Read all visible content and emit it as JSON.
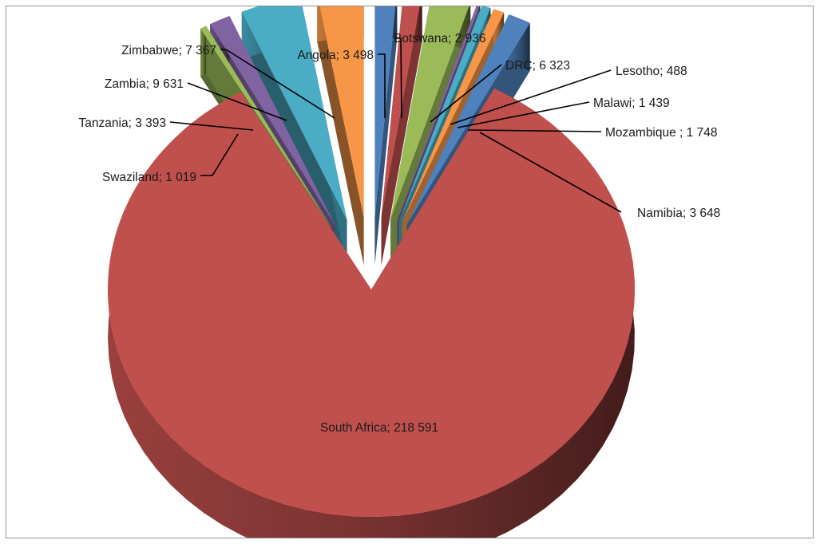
{
  "chart_data": {
    "type": "pie",
    "style": "3d-exploded",
    "title": "",
    "slices": [
      {
        "label": "Angola",
        "value": 3498,
        "text": "Angola; 3 498",
        "color": "#4f81bd"
      },
      {
        "label": "Botswana",
        "value": 2936,
        "text": "Botswana; 2 936",
        "color": "#c0504d"
      },
      {
        "label": "DRC",
        "value": 6323,
        "text": "DRC; 6 323",
        "color": "#9bbb59"
      },
      {
        "label": "Lesotho",
        "value": 488,
        "text": "Lesotho; 488",
        "color": "#8064a2"
      },
      {
        "label": "Malawi",
        "value": 1439,
        "text": "Malawi; 1 439",
        "color": "#4bacc6"
      },
      {
        "label": "Mozambique",
        "value": 1748,
        "text": "Mozambique ; 1 748",
        "color": "#f79646"
      },
      {
        "label": "Namibia",
        "value": 3648,
        "text": "Namibia; 3 648",
        "color": "#4f81bd"
      },
      {
        "label": "South Africa",
        "value": 218591,
        "text": "South Africa; 218 591",
        "color": "#c0504d"
      },
      {
        "label": "Swaziland",
        "value": 1019,
        "text": "Swaziland; 1 019",
        "color": "#9bbb59"
      },
      {
        "label": "Tanzania",
        "value": 3393,
        "text": "Tanzania; 3 393",
        "color": "#8064a2"
      },
      {
        "label": "Zambia",
        "value": 9631,
        "text": "Zambia; 9 631",
        "color": "#4bacc6"
      },
      {
        "label": "Zimbabwe",
        "value": 7367,
        "text": "Zimbabwe; 7 367",
        "color": "#f79646"
      }
    ]
  }
}
